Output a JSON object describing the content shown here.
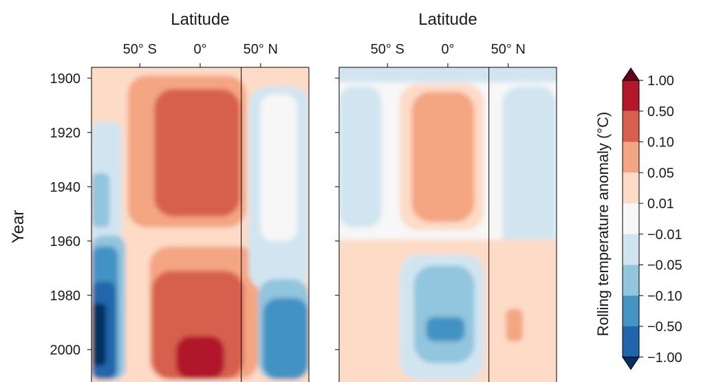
{
  "colors": {
    "pos_3": "#b2182b",
    "pos_2": "#d6604d",
    "pos_1": "#f4a582",
    "pos_0": "#fddbc7",
    "neutral": "#f7f7f7",
    "neg_0": "#d1e5f0",
    "neg_1": "#92c5de",
    "neg_2": "#4393c3",
    "neg_3": "#2166ac",
    "over": "#67001f",
    "under": "#053061"
  },
  "chart_data": [
    {
      "type": "heatmap",
      "panel": "left",
      "xlabel": "Latitude",
      "ylabel": "Year",
      "x_ticks": [
        {
          "value": -50,
          "label": "50° S"
        },
        {
          "value": 0,
          "label": "0°"
        },
        {
          "value": 50,
          "label": "50° N"
        }
      ],
      "y_ticks": [
        {
          "value": 1900,
          "label": "1900"
        },
        {
          "value": 1920,
          "label": "1920"
        },
        {
          "value": 1940,
          "label": "1940"
        },
        {
          "value": 1960,
          "label": "1960"
        },
        {
          "value": 1980,
          "label": "1980"
        },
        {
          "value": 2000,
          "label": "2000"
        }
      ],
      "xlim": [
        -90,
        90
      ],
      "ylim": [
        1896,
        2011
      ],
      "y_inverted": true,
      "divider_latitude": 34,
      "regions": [
        {
          "lat": [
            -90,
            90
          ],
          "years": [
            1896,
            2011
          ],
          "level": "pos_0"
        },
        {
          "lat": [
            -90,
            -65
          ],
          "years": [
            1916,
            2011
          ],
          "level": "neg_0"
        },
        {
          "lat": [
            -90,
            -75
          ],
          "years": [
            1935,
            1955
          ],
          "level": "neg_1"
        },
        {
          "lat": [
            -90,
            -62
          ],
          "years": [
            1958,
            2011
          ],
          "level": "neg_1"
        },
        {
          "lat": [
            -90,
            -68
          ],
          "years": [
            1962,
            2011
          ],
          "level": "neg_2"
        },
        {
          "lat": [
            -90,
            -70
          ],
          "years": [
            1975,
            2011
          ],
          "level": "neg_3"
        },
        {
          "lat": [
            -90,
            -78
          ],
          "years": [
            1983,
            2006
          ],
          "level": "under"
        },
        {
          "lat": [
            -60,
            38
          ],
          "years": [
            1899,
            1955
          ],
          "level": "pos_1"
        },
        {
          "lat": [
            -38,
            33
          ],
          "years": [
            1904,
            1951
          ],
          "level": "pos_2"
        },
        {
          "lat": [
            -42,
            48
          ],
          "years": [
            1962,
            2011
          ],
          "level": "pos_1"
        },
        {
          "lat": [
            -40,
            36
          ],
          "years": [
            1971,
            2011
          ],
          "level": "pos_2"
        },
        {
          "lat": [
            -20,
            20
          ],
          "years": [
            1995,
            2011
          ],
          "level": "pos_3"
        },
        {
          "lat": [
            40,
            90
          ],
          "years": [
            1903,
            1978
          ],
          "level": "neg_0"
        },
        {
          "lat": [
            50,
            80
          ],
          "years": [
            1906,
            1960
          ],
          "level": "neutral"
        },
        {
          "lat": [
            48,
            90
          ],
          "years": [
            1974,
            2011
          ],
          "level": "neg_1"
        },
        {
          "lat": [
            52,
            90
          ],
          "years": [
            1981,
            2011
          ],
          "level": "neg_2"
        }
      ]
    },
    {
      "type": "heatmap",
      "panel": "right",
      "xlabel": "Latitude",
      "ylabel": "",
      "x_ticks": [
        {
          "value": -50,
          "label": "50° S"
        },
        {
          "value": 0,
          "label": "0°"
        },
        {
          "value": 50,
          "label": "50° N"
        }
      ],
      "y_ticks": [
        {
          "value": 1900,
          "label": ""
        },
        {
          "value": 1920,
          "label": ""
        },
        {
          "value": 1940,
          "label": ""
        },
        {
          "value": 1960,
          "label": ""
        },
        {
          "value": 1980,
          "label": ""
        },
        {
          "value": 2000,
          "label": ""
        }
      ],
      "xlim": [
        -90,
        90
      ],
      "ylim": [
        1896,
        2011
      ],
      "y_inverted": true,
      "divider_latitude": 34,
      "regions": [
        {
          "lat": [
            -90,
            90
          ],
          "years": [
            1896,
            2011
          ],
          "level": "neutral"
        },
        {
          "lat": [
            -90,
            -55
          ],
          "years": [
            1903,
            1955
          ],
          "level": "neg_0"
        },
        {
          "lat": [
            45,
            90
          ],
          "years": [
            1903,
            1975
          ],
          "level": "neg_0"
        },
        {
          "lat": [
            -90,
            90
          ],
          "years": [
            1896,
            1899
          ],
          "level": "neg_0"
        },
        {
          "lat": [
            -40,
            30
          ],
          "years": [
            1902,
            1956
          ],
          "level": "pos_0"
        },
        {
          "lat": [
            -30,
            22
          ],
          "years": [
            1905,
            1953
          ],
          "level": "pos_1"
        },
        {
          "lat": [
            -90,
            90
          ],
          "years": [
            1962,
            2011
          ],
          "level": "pos_0"
        },
        {
          "lat": [
            -40,
            30
          ],
          "years": [
            1965,
            2011
          ],
          "level": "neg_0"
        },
        {
          "lat": [
            -28,
            22
          ],
          "years": [
            1969,
            2005
          ],
          "level": "neg_1"
        },
        {
          "lat": [
            -18,
            14
          ],
          "years": [
            1988,
            1997
          ],
          "level": "neg_2"
        },
        {
          "lat": [
            -60,
            -48
          ],
          "years": [
            1983,
            1996
          ],
          "level": "pos_0"
        },
        {
          "lat": [
            48,
            62
          ],
          "years": [
            1985,
            1997
          ],
          "level": "pos_1"
        }
      ]
    }
  ],
  "colorbar": {
    "label": "Rolling temperature anomaly (°C)",
    "extend": "both",
    "bins_top_to_bottom": [
      "pos_3",
      "pos_2",
      "pos_1",
      "pos_0",
      "neutral",
      "neg_0",
      "neg_1",
      "neg_2",
      "neg_3"
    ],
    "ticks": [
      "1.00",
      "0.50",
      "0.10",
      "0.05",
      "0.01",
      "−0.01",
      "−0.05",
      "−0.10",
      "−0.50",
      "−1.00"
    ]
  }
}
